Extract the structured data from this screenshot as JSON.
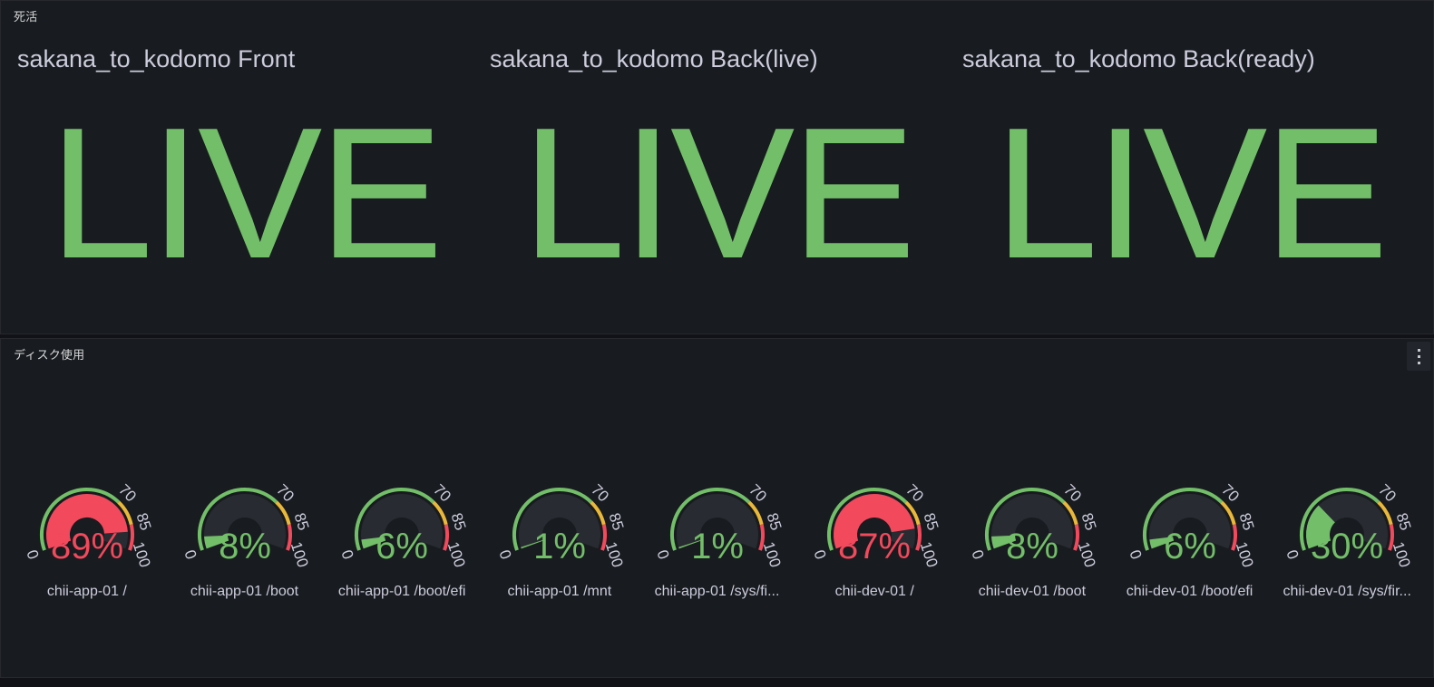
{
  "colors": {
    "green": "#73bf69",
    "yellow": "#eab839",
    "red": "#f2495c",
    "page_bg": "#111217",
    "panel_bg": "#181b1f",
    "panel_border": "#26282e",
    "text_primary": "#ccccdc",
    "gauge_track": "#282b31"
  },
  "chart_data": [
    {
      "type": "stat",
      "panel_title": "死活",
      "layout": "3 stat values in one row",
      "items": [
        {
          "title": "sakana_to_kodomo Front",
          "value": "LIVE",
          "color": "#73bf69"
        },
        {
          "title": "sakana_to_kodomo Back(live)",
          "value": "LIVE",
          "color": "#73bf69"
        },
        {
          "title": "sakana_to_kodomo Back(ready)",
          "value": "LIVE",
          "color": "#73bf69"
        }
      ]
    },
    {
      "type": "gauge",
      "panel_title": "ディスク使用",
      "unit": "%",
      "min": 0,
      "max": 100,
      "menu_icon": "kebab-menu-icon",
      "ticks": [
        "0",
        "70",
        "85",
        "100"
      ],
      "tick_values": [
        0,
        70,
        85,
        100
      ],
      "thresholds": [
        {
          "from": 0,
          "to": 70,
          "color": "#73bf69",
          "name": "ok"
        },
        {
          "from": 70,
          "to": 85,
          "color": "#eab839",
          "name": "warning"
        },
        {
          "from": 85,
          "to": 100,
          "color": "#f2495c",
          "name": "critical"
        }
      ],
      "series": [
        {
          "name": "chii-app-01 /",
          "value": 89,
          "display": "89%"
        },
        {
          "name": "chii-app-01 /boot",
          "value": 8,
          "display": "8%"
        },
        {
          "name": "chii-app-01 /boot/efi",
          "value": 6,
          "display": "6%"
        },
        {
          "name": "chii-app-01 /mnt",
          "value": 1,
          "display": "1%"
        },
        {
          "name": "chii-app-01 /sys/fi...",
          "value": 1,
          "display": "1%"
        },
        {
          "name": "chii-dev-01 /",
          "value": 87,
          "display": "87%"
        },
        {
          "name": "chii-dev-01 /boot",
          "value": 8,
          "display": "8%"
        },
        {
          "name": "chii-dev-01 /boot/efi",
          "value": 6,
          "display": "6%"
        },
        {
          "name": "chii-dev-01 /sys/fir...",
          "value": 30,
          "display": "30%"
        }
      ]
    }
  ]
}
